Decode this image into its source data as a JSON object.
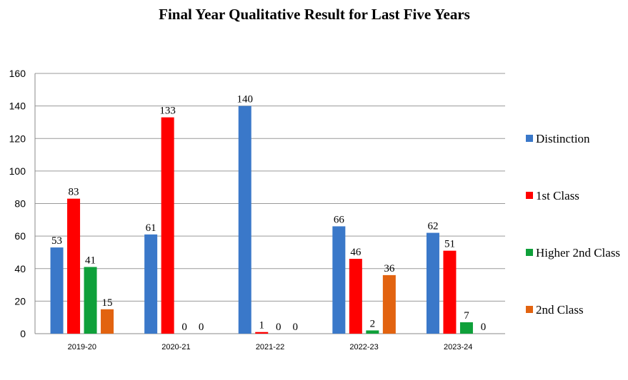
{
  "chart_data": {
    "type": "bar",
    "title": "Final Year Qualitative Result for Last Five Years",
    "categories": [
      "2019-20",
      "2020-21",
      "2021-22",
      "2022-23",
      "2023-24"
    ],
    "series": [
      {
        "name": "Distinction",
        "color": "#3a78c9",
        "values": [
          53,
          61,
          140,
          66,
          62
        ]
      },
      {
        "name": "1st Class",
        "color": "#ff0000",
        "values": [
          83,
          133,
          1,
          46,
          51
        ]
      },
      {
        "name": "Higher 2nd Class",
        "color": "#0fa03a",
        "values": [
          41,
          0,
          0,
          2,
          7
        ]
      },
      {
        "name": "2nd Class",
        "color": "#e26310",
        "values": [
          15,
          0,
          0,
          36,
          0
        ]
      }
    ],
    "ylim": [
      0,
      160
    ],
    "yticks": [
      0,
      20,
      40,
      60,
      80,
      100,
      120,
      140,
      160
    ],
    "xlabel": "",
    "ylabel": "",
    "grid": true,
    "legend": "right"
  }
}
